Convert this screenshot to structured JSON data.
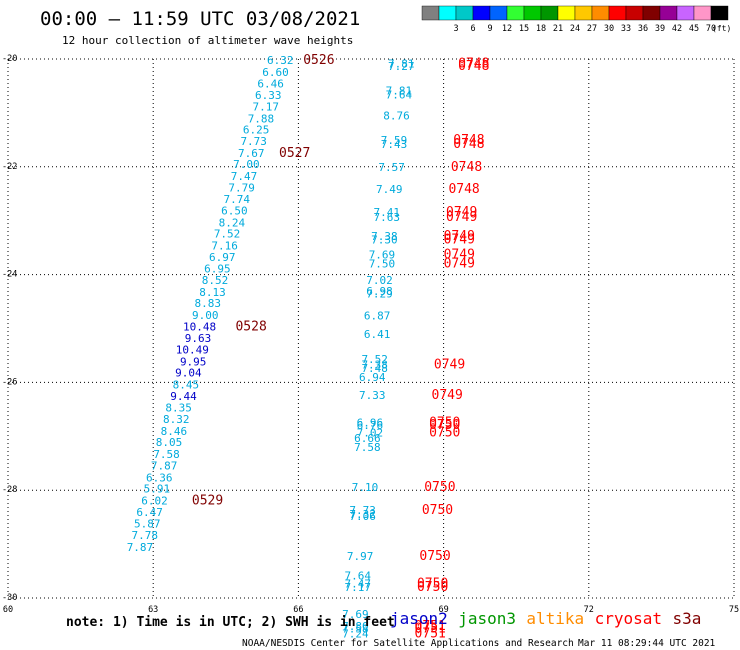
{
  "header": {
    "title": "00:00 – 11:59 UTC 03/08/2021",
    "subtitle": "12 hour collection of altimeter wave heights"
  },
  "legend": {
    "unit": "(ft)",
    "colors": [
      "#808080",
      "#00ffff",
      "#00c8c8",
      "#0000ff",
      "#0064ff",
      "#32ff32",
      "#00c800",
      "#009600",
      "#ffff00",
      "#ffc800",
      "#ff8c00",
      "#ff0000",
      "#c80000",
      "#800000",
      "#960096",
      "#c864ff",
      "#ff96c8",
      "#000000"
    ],
    "labels": [
      "3",
      "6",
      "9",
      "12",
      "15",
      "18",
      "21",
      "24",
      "27",
      "30",
      "33",
      "36",
      "39",
      "42",
      "45",
      "70"
    ]
  },
  "footer": {
    "note": "note: 1) Time is in UTC; 2) SWH is in feet",
    "credit": "NOAA/NESDIS Center for Satellite Applications and Research",
    "timestamp": "Mar 11 08:29:44 UTC 2021",
    "satellites": [
      {
        "name": "jason2",
        "color": "#0000c8"
      },
      {
        "name": "jason3",
        "color": "#009600"
      },
      {
        "name": "altika",
        "color": "#ff8c00"
      },
      {
        "name": "cryosat",
        "color": "#ff0000"
      },
      {
        "name": "s3a",
        "color": "#800000"
      }
    ]
  },
  "chart_data": {
    "type": "scatter",
    "xlim": [
      60,
      75
    ],
    "ylim": [
      -30,
      -20
    ],
    "x_ticks": [
      "60",
      "63",
      "66",
      "69",
      "72",
      "75"
    ],
    "y_ticks": [
      "-20",
      "-22",
      "-24",
      "-26",
      "-28",
      "-30"
    ],
    "grid": true,
    "colors": {
      "light": "#00aadc",
      "dark": "#0000c8",
      "red": "#ff0000",
      "maroon": "#800000"
    },
    "track_a": [
      {
        "x": 65.9,
        "y": -20.02,
        "label": "6.32",
        "c": "light"
      },
      {
        "x": 65.8,
        "y": -20.24,
        "label": "6.60",
        "c": "light"
      },
      {
        "x": 65.7,
        "y": -20.45,
        "label": "6.46",
        "c": "light"
      },
      {
        "x": 65.65,
        "y": -20.67,
        "label": "6.33",
        "c": "light"
      },
      {
        "x": 65.6,
        "y": -20.88,
        "label": "7.17",
        "c": "light"
      },
      {
        "x": 65.5,
        "y": -21.1,
        "label": "7.88",
        "c": "light"
      },
      {
        "x": 65.4,
        "y": -21.31,
        "label": "6.25",
        "c": "light"
      },
      {
        "x": 65.35,
        "y": -21.52,
        "label": "7.73",
        "c": "light"
      },
      {
        "x": 65.3,
        "y": -21.74,
        "label": "7.67",
        "c": "light"
      },
      {
        "x": 65.2,
        "y": -21.95,
        "label": "7.00",
        "c": "light"
      },
      {
        "x": 65.15,
        "y": -22.17,
        "label": "7.47",
        "c": "light"
      },
      {
        "x": 65.1,
        "y": -22.38,
        "label": "7.79",
        "c": "light"
      },
      {
        "x": 65.0,
        "y": -22.6,
        "label": "7.74",
        "c": "light"
      },
      {
        "x": 64.95,
        "y": -22.81,
        "label": "6.50",
        "c": "light"
      },
      {
        "x": 64.9,
        "y": -23.03,
        "label": "8.24",
        "c": "light"
      },
      {
        "x": 64.8,
        "y": -23.24,
        "label": "7.52",
        "c": "light"
      },
      {
        "x": 64.75,
        "y": -23.46,
        "label": "7.16",
        "c": "light"
      },
      {
        "x": 64.7,
        "y": -23.67,
        "label": "6.97",
        "c": "light"
      },
      {
        "x": 64.6,
        "y": -23.89,
        "label": "6.95",
        "c": "light"
      },
      {
        "x": 64.55,
        "y": -24.1,
        "label": "8.52",
        "c": "light"
      },
      {
        "x": 64.5,
        "y": -24.32,
        "label": "8.13",
        "c": "light"
      },
      {
        "x": 64.4,
        "y": -24.53,
        "label": "8.83",
        "c": "light"
      },
      {
        "x": 64.35,
        "y": -24.75,
        "label": "9.00",
        "c": "light"
      },
      {
        "x": 64.3,
        "y": -24.96,
        "label": "10.48",
        "c": "dark"
      },
      {
        "x": 64.2,
        "y": -25.18,
        "label": "9.63",
        "c": "dark"
      },
      {
        "x": 64.15,
        "y": -25.39,
        "label": "10.49",
        "c": "dark"
      },
      {
        "x": 64.1,
        "y": -25.61,
        "label": "9.95",
        "c": "dark"
      },
      {
        "x": 64.0,
        "y": -25.82,
        "label": "9.04",
        "c": "dark"
      },
      {
        "x": 63.95,
        "y": -26.04,
        "label": "8.45",
        "c": "light"
      },
      {
        "x": 63.9,
        "y": -26.25,
        "label": "9.44",
        "c": "dark"
      },
      {
        "x": 63.8,
        "y": -26.47,
        "label": "8.35",
        "c": "light"
      },
      {
        "x": 63.75,
        "y": -26.68,
        "label": "8.32",
        "c": "light"
      },
      {
        "x": 63.7,
        "y": -26.9,
        "label": "8.46",
        "c": "light"
      },
      {
        "x": 63.6,
        "y": -27.11,
        "label": "8.05",
        "c": "light"
      },
      {
        "x": 63.55,
        "y": -27.33,
        "label": "7.58",
        "c": "light"
      },
      {
        "x": 63.5,
        "y": -27.54,
        "label": "7.87",
        "c": "light"
      },
      {
        "x": 63.4,
        "y": -27.76,
        "label": "6.36",
        "c": "light"
      },
      {
        "x": 63.35,
        "y": -27.97,
        "label": "5.91",
        "c": "light"
      },
      {
        "x": 63.3,
        "y": -28.19,
        "label": "6.02",
        "c": "light"
      },
      {
        "x": 63.2,
        "y": -28.4,
        "label": "6.47",
        "c": "light"
      },
      {
        "x": 63.15,
        "y": -28.62,
        "label": "5.87",
        "c": "light"
      },
      {
        "x": 63.1,
        "y": -28.83,
        "label": "7.78",
        "c": "light"
      },
      {
        "x": 63.0,
        "y": -29.05,
        "label": "7.87",
        "c": "light"
      }
    ],
    "track_a_times": [
      {
        "x": 66.1,
        "y": -20.02,
        "label": "0526"
      },
      {
        "x": 65.6,
        "y": -21.74,
        "label": "0527"
      },
      {
        "x": 64.7,
        "y": -24.96,
        "label": "0528"
      },
      {
        "x": 63.8,
        "y": -28.19,
        "label": "0529"
      }
    ],
    "track_b": [
      {
        "x": 68.4,
        "y": -20.08,
        "label": "7.81",
        "c": "light"
      },
      {
        "x": 68.4,
        "y": -20.13,
        "label": "7.27",
        "c": "light"
      },
      {
        "x": 68.35,
        "y": -20.58,
        "label": "7.81",
        "c": "light"
      },
      {
        "x": 68.35,
        "y": -20.66,
        "label": "7.64",
        "c": "light"
      },
      {
        "x": 68.3,
        "y": -21.05,
        "label": "8.76",
        "c": "light"
      },
      {
        "x": 68.25,
        "y": -21.5,
        "label": "7.59",
        "c": "light"
      },
      {
        "x": 68.25,
        "y": -21.58,
        "label": "7.43",
        "c": "light"
      },
      {
        "x": 68.2,
        "y": -22.0,
        "label": "7.57",
        "c": "light"
      },
      {
        "x": 68.15,
        "y": -22.41,
        "label": "7.49",
        "c": "light"
      },
      {
        "x": 68.1,
        "y": -22.84,
        "label": "7.41",
        "c": "light"
      },
      {
        "x": 68.1,
        "y": -22.93,
        "label": "7.63",
        "c": "light"
      },
      {
        "x": 68.05,
        "y": -23.28,
        "label": "7.38",
        "c": "light"
      },
      {
        "x": 68.05,
        "y": -23.35,
        "label": "7.30",
        "c": "light"
      },
      {
        "x": 68.0,
        "y": -23.63,
        "label": "7.69",
        "c": "light"
      },
      {
        "x": 68.0,
        "y": -23.79,
        "label": "7.50",
        "c": "light"
      },
      {
        "x": 67.95,
        "y": -24.1,
        "label": "7.02",
        "c": "light"
      },
      {
        "x": 67.95,
        "y": -24.3,
        "label": "6.98",
        "c": "light"
      },
      {
        "x": 67.95,
        "y": -24.35,
        "label": "7.29",
        "c": "light"
      },
      {
        "x": 67.9,
        "y": -24.76,
        "label": "6.87",
        "c": "light"
      },
      {
        "x": 67.9,
        "y": -25.1,
        "label": "6.41",
        "c": "light"
      },
      {
        "x": 67.85,
        "y": -25.57,
        "label": "7.52",
        "c": "light"
      },
      {
        "x": 67.85,
        "y": -25.67,
        "label": "7.38",
        "c": "light"
      },
      {
        "x": 67.85,
        "y": -25.73,
        "label": "7.48",
        "c": "light"
      },
      {
        "x": 67.8,
        "y": -25.9,
        "label": "6.94",
        "c": "light"
      },
      {
        "x": 67.8,
        "y": -26.23,
        "label": "7.33",
        "c": "light"
      },
      {
        "x": 67.75,
        "y": -26.74,
        "label": "6.96",
        "c": "light"
      },
      {
        "x": 67.75,
        "y": -26.79,
        "label": "6.76",
        "c": "light"
      },
      {
        "x": 67.75,
        "y": -26.93,
        "label": "7.02",
        "c": "light"
      },
      {
        "x": 67.7,
        "y": -27.03,
        "label": "6.66",
        "c": "light"
      },
      {
        "x": 67.7,
        "y": -27.2,
        "label": "7.58",
        "c": "light"
      },
      {
        "x": 67.65,
        "y": -27.94,
        "label": "7.10",
        "c": "light"
      },
      {
        "x": 67.6,
        "y": -28.37,
        "label": "7.73",
        "c": "light"
      },
      {
        "x": 67.6,
        "y": -28.44,
        "label": "7.32",
        "c": "light"
      },
      {
        "x": 67.6,
        "y": -28.48,
        "label": "7.06",
        "c": "light"
      },
      {
        "x": 67.55,
        "y": -29.22,
        "label": "7.97",
        "c": "light"
      },
      {
        "x": 67.5,
        "y": -29.58,
        "label": "7.64",
        "c": "light"
      },
      {
        "x": 67.5,
        "y": -29.73,
        "label": "7.47",
        "c": "light"
      },
      {
        "x": 67.5,
        "y": -29.8,
        "label": "7.17",
        "c": "light"
      },
      {
        "x": 67.45,
        "y": -30.3,
        "label": "7.69",
        "c": "light"
      },
      {
        "x": 67.45,
        "y": -30.52,
        "label": "7.80",
        "c": "light"
      },
      {
        "x": 67.45,
        "y": -30.57,
        "label": "7.58",
        "c": "light"
      },
      {
        "x": 67.45,
        "y": -30.66,
        "label": "7.24",
        "c": "light"
      }
    ],
    "track_b_times": [
      {
        "x": 69.3,
        "y": -20.08,
        "label": "0748"
      },
      {
        "x": 69.3,
        "y": -20.13,
        "label": "0748"
      },
      {
        "x": 69.2,
        "y": -21.5,
        "label": "0748"
      },
      {
        "x": 69.2,
        "y": -21.58,
        "label": "0748"
      },
      {
        "x": 69.15,
        "y": -22.0,
        "label": "0748"
      },
      {
        "x": 69.1,
        "y": -22.41,
        "label": "0748"
      },
      {
        "x": 69.05,
        "y": -22.84,
        "label": "0749"
      },
      {
        "x": 69.05,
        "y": -22.93,
        "label": "0749"
      },
      {
        "x": 69.0,
        "y": -23.28,
        "label": "0749"
      },
      {
        "x": 69.0,
        "y": -23.35,
        "label": "0749"
      },
      {
        "x": 69.0,
        "y": -23.63,
        "label": "0749"
      },
      {
        "x": 69.0,
        "y": -23.79,
        "label": "0749"
      },
      {
        "x": 68.8,
        "y": -25.67,
        "label": "0749"
      },
      {
        "x": 68.75,
        "y": -26.23,
        "label": "0749"
      },
      {
        "x": 68.7,
        "y": -26.74,
        "label": "0750"
      },
      {
        "x": 68.7,
        "y": -26.79,
        "label": "0750"
      },
      {
        "x": 68.7,
        "y": -26.93,
        "label": "0750"
      },
      {
        "x": 68.6,
        "y": -27.94,
        "label": "0750"
      },
      {
        "x": 68.55,
        "y": -28.37,
        "label": "0750"
      },
      {
        "x": 68.5,
        "y": -29.22,
        "label": "0750"
      },
      {
        "x": 68.45,
        "y": -29.73,
        "label": "0750"
      },
      {
        "x": 68.45,
        "y": -29.8,
        "label": "0750"
      },
      {
        "x": 68.4,
        "y": -30.52,
        "label": "0751"
      },
      {
        "x": 68.4,
        "y": -30.57,
        "label": "0751"
      },
      {
        "x": 68.4,
        "y": -30.66,
        "label": "0751"
      }
    ]
  }
}
